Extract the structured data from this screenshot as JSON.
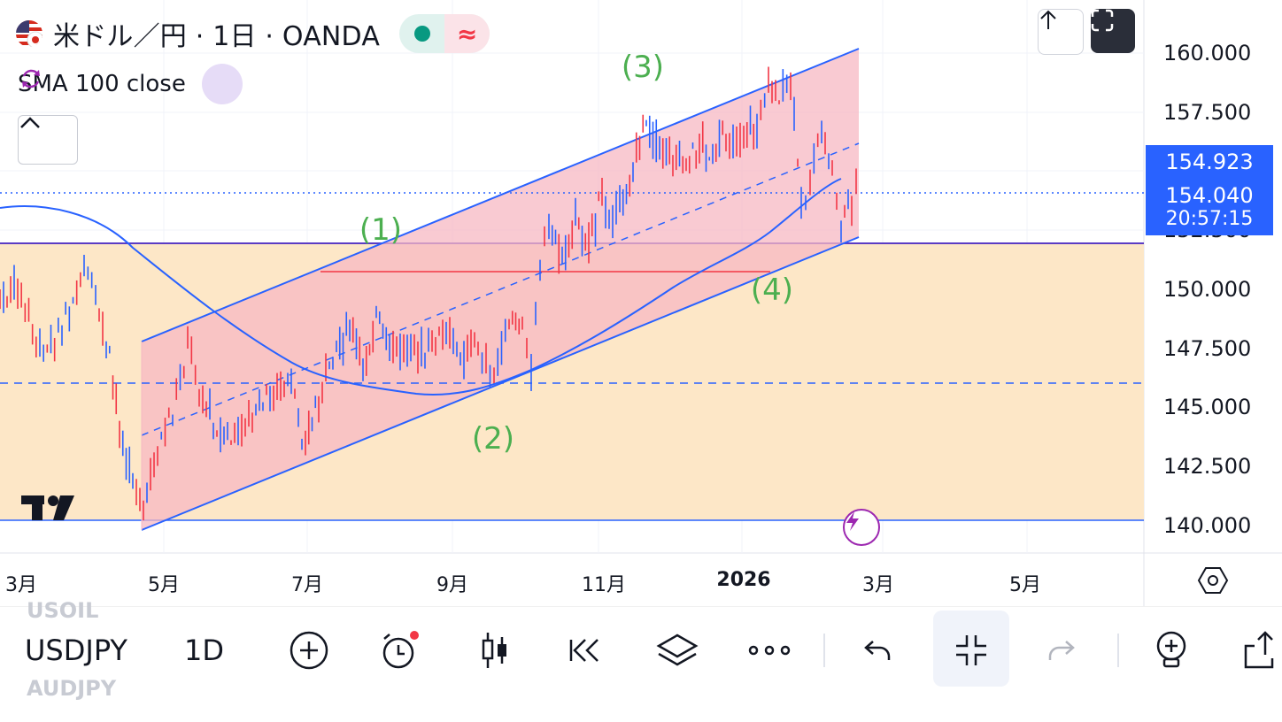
{
  "header": {
    "symbol_title": "米ドル／円 · 1日 · OANDA",
    "status_right_icon": "≈",
    "indicator_label": "SMA 100 close"
  },
  "price_axis": {
    "labels": [
      "160.000",
      "157.500",
      "150.000",
      "147.500",
      "145.000",
      "142.500",
      "140.000"
    ],
    "hidden_label": "152.500",
    "marker_price": "154.923",
    "current_price": "154.040",
    "countdown": "20:57:15"
  },
  "time_axis": {
    "labels": [
      "3月",
      "5月",
      "7月",
      "9月",
      "11月",
      "2026",
      "3月",
      "5月"
    ]
  },
  "chart": {
    "wave_labels": [
      "(1)",
      "(2)",
      "(3)",
      "(4)"
    ],
    "colors": {
      "up": "#f23645",
      "down": "#2962ff",
      "sma": "#2962ff",
      "channel_fill": "#f7c3cc",
      "zone_fill": "#fde7c7",
      "wave_label": "#4caf50",
      "marker": "#2962ff"
    }
  },
  "toolbar": {
    "symbol": "USDJPY",
    "interval": "1D",
    "ghost_above": "USOIL",
    "ghost_below": "AUDJPY",
    "icons": [
      "add-icon",
      "alert-icon",
      "candles-icon",
      "replay-icon",
      "layers-icon",
      "more-icon",
      "undo-icon",
      "fullscreen-exit-icon",
      "redo-icon",
      "idea-icon",
      "share-icon"
    ]
  }
}
